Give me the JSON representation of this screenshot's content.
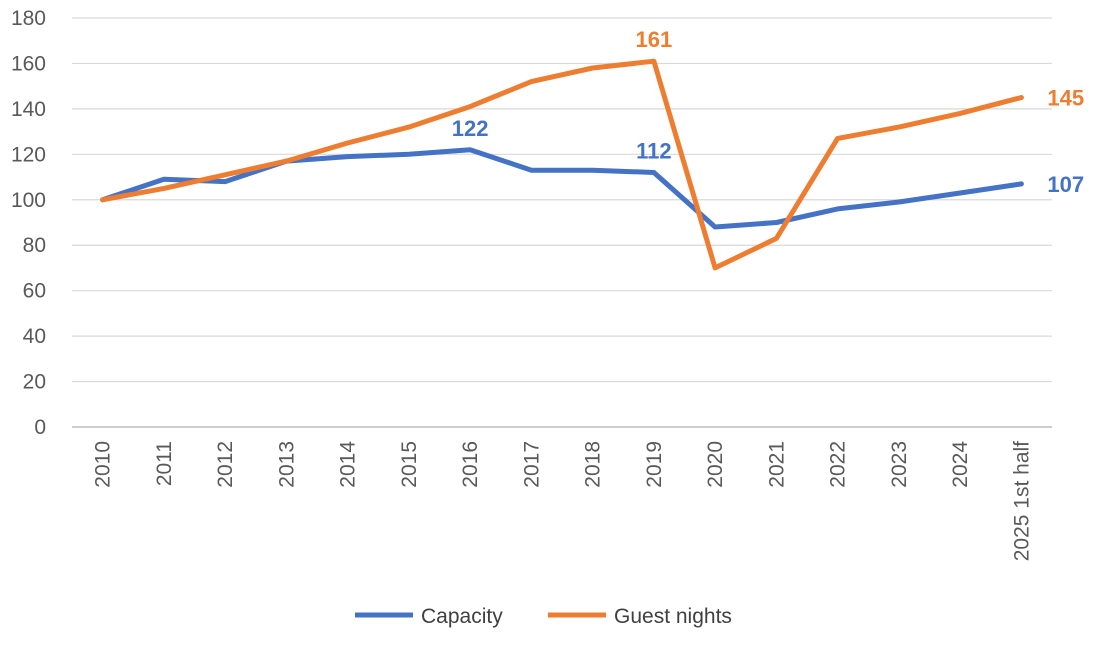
{
  "chart_data": {
    "type": "line",
    "title": "",
    "xlabel": "",
    "ylabel": "",
    "categories": [
      "2010",
      "2011",
      "2012",
      "2013",
      "2014",
      "2015",
      "2016",
      "2017",
      "2018",
      "2019",
      "2020",
      "2021",
      "2022",
      "2023",
      "2024",
      "2025 1st half"
    ],
    "ylim": [
      0,
      180
    ],
    "yticks": [
      0,
      20,
      40,
      60,
      80,
      100,
      120,
      140,
      160,
      180
    ],
    "grid": true,
    "legend_position": "bottom",
    "series": [
      {
        "name": "Capacity",
        "color": "#4472C4",
        "values": [
          100,
          109,
          108,
          117,
          119,
          120,
          122,
          113,
          113,
          112,
          88,
          90,
          96,
          99,
          103,
          107
        ],
        "labels": [
          {
            "index": 6,
            "text": "122"
          },
          {
            "index": 9,
            "text": "112"
          },
          {
            "index": 15,
            "text": "107"
          }
        ]
      },
      {
        "name": "Guest nights",
        "color": "#ED7D31",
        "values": [
          100,
          105,
          111,
          117,
          125,
          132,
          141,
          152,
          158,
          161,
          70,
          83,
          127,
          132,
          138,
          145
        ],
        "labels": [
          {
            "index": 9,
            "text": "161"
          },
          {
            "index": 15,
            "text": "145"
          }
        ]
      }
    ]
  }
}
